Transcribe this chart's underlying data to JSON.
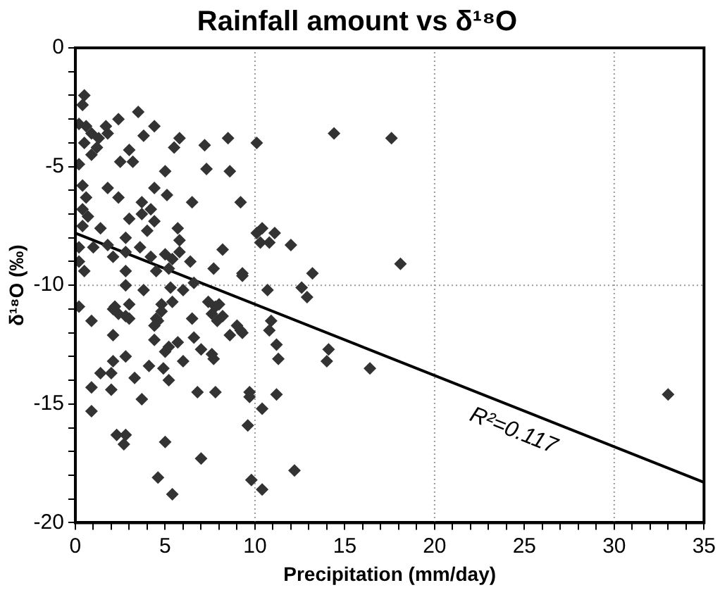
{
  "chart_data": {
    "type": "scatter",
    "title": "Rainfall amount vs δ¹⁸O",
    "xlabel": "Precipitation (mm/day)",
    "ylabel": "δ¹⁸O (‰)",
    "marker": "diamond",
    "xlim": [
      0,
      35
    ],
    "xticks": [
      0,
      {
        "value": 1,
        "label": null
      },
      {
        "value": 2,
        "label": null
      },
      {
        "value": 3,
        "label": null
      },
      {
        "value": 4,
        "label": null
      },
      5,
      {
        "value": 6,
        "label": null
      },
      {
        "value": 7,
        "label": null
      },
      {
        "value": 8,
        "label": null
      },
      {
        "value": 9,
        "label": null
      },
      10,
      {
        "value": 11,
        "label": null
      },
      {
        "value": 12,
        "label": null
      },
      {
        "value": 13,
        "label": null
      },
      {
        "value": 14,
        "label": null
      },
      15,
      {
        "value": 16,
        "label": null
      },
      {
        "value": 17,
        "label": null
      },
      {
        "value": 18,
        "label": null
      },
      {
        "value": 19,
        "label": null
      },
      20,
      {
        "value": 21,
        "label": null
      },
      {
        "value": 22,
        "label": null
      },
      {
        "value": 23,
        "label": null
      },
      {
        "value": 24,
        "label": null
      },
      25,
      {
        "value": 26,
        "label": null
      },
      {
        "value": 27,
        "label": null
      },
      {
        "value": 28,
        "label": null
      },
      {
        "value": 29,
        "label": null
      },
      30,
      {
        "value": 31,
        "label": null
      },
      {
        "value": 32,
        "label": null
      },
      {
        "value": 33,
        "label": null
      },
      {
        "value": 34,
        "label": null
      },
      35
    ],
    "ylim": [
      -20,
      0
    ],
    "yticks": [
      -20,
      {
        "value": -19,
        "label": null
      },
      {
        "value": -18,
        "label": null
      },
      {
        "value": -17,
        "label": null
      },
      {
        "value": -16,
        "label": null
      },
      -15,
      {
        "value": -14,
        "label": null
      },
      {
        "value": -13,
        "label": null
      },
      {
        "value": -12,
        "label": null
      },
      {
        "value": -11,
        "label": null
      },
      -10,
      {
        "value": -9,
        "label": null
      },
      {
        "value": -8,
        "label": null
      },
      {
        "value": -7,
        "label": null
      },
      {
        "value": -6,
        "label": null
      },
      -5,
      {
        "value": -4,
        "label": null
      },
      {
        "value": -3,
        "label": null
      },
      {
        "value": -2,
        "label": null
      },
      {
        "value": -1,
        "label": null
      },
      0
    ],
    "ref_lines": [
      {
        "axis": "x",
        "value": 10,
        "color": "#999999",
        "line_style": "dotted"
      },
      {
        "axis": "x",
        "value": 20,
        "color": "#999999",
        "line_style": "dotted"
      },
      {
        "axis": "x",
        "value": 30,
        "color": "#999999",
        "line_style": "dotted"
      },
      {
        "axis": "y",
        "value": -10,
        "color": "#999999",
        "line_style": "dotted"
      }
    ],
    "series": [
      {
        "type": "scatter",
        "color": "#333333",
        "x": [
          0.5,
          0.4,
          0.2,
          0.6,
          0.9,
          1.3,
          0.5,
          1.2,
          0.9,
          1.7,
          1.8,
          2.4,
          3.5,
          3.8,
          4.4,
          5.8,
          5.5,
          7.2,
          8.5,
          10.1,
          3.0,
          2.5,
          3.2,
          0.2,
          5.0,
          7.3,
          8.6,
          0.4,
          1.8,
          2.4,
          4.4,
          5.1,
          6.5,
          9.2,
          0.6,
          0.4,
          0.7,
          3.7,
          4.2,
          3.7,
          3.0,
          4.4,
          5.7,
          4.0,
          0.4,
          1.4,
          2.8,
          1.8,
          1.0,
          0.2,
          5.8,
          8.2,
          10.1,
          10.4,
          10.3,
          10.8,
          11.1,
          2.1,
          2.8,
          3.6,
          4.2,
          5.0,
          5.4,
          5.8,
          6.4,
          0.2,
          0.5,
          2.8,
          4.5,
          5.2,
          7.7,
          9.3,
          2.8,
          3.8,
          5.3,
          6.0,
          6.6,
          10.7,
          0.2,
          2.2,
          3.0,
          4.8,
          5.4,
          7.4,
          8.0,
          0.9,
          2.1,
          2.4,
          2.8,
          3.0,
          2.1,
          4.5,
          4.8,
          4.4,
          4.6,
          4.4,
          6.5,
          7.6,
          7.9,
          8.2,
          7.8,
          8.6,
          9.0,
          9.3,
          6.6,
          7.0,
          5.7,
          5.2,
          5.0,
          7.6,
          7.7,
          6.0,
          2.8,
          2.1,
          1.4,
          2.0,
          3.3,
          4.1,
          4.9,
          5.2,
          0.9,
          2.0,
          3.7,
          0.9,
          6.8,
          7.8,
          9.7,
          9.7,
          10.4,
          9.6,
          2.3,
          2.8,
          2.7,
          5.0,
          7.0,
          4.6,
          5.4,
          9.8,
          10.4,
          10.9,
          10.8,
          11.2,
          11.3,
          11.2,
          14.4,
          17.6,
          12.0,
          18.1,
          13.2,
          9.3,
          12.6,
          12.9,
          9.2,
          14.1,
          14.0,
          16.4,
          12.2,
          33.0
        ],
        "values": [
          -2.0,
          -2.4,
          -3.2,
          -3.3,
          -3.6,
          -3.8,
          -4.0,
          -4.2,
          -4.5,
          -3.3,
          -3.6,
          -3.0,
          -2.7,
          -3.7,
          -3.3,
          -3.8,
          -4.2,
          -4.1,
          -3.8,
          -4.0,
          -4.3,
          -4.8,
          -4.8,
          -4.9,
          -5.2,
          -5.1,
          -5.2,
          -5.8,
          -5.9,
          -6.3,
          -5.9,
          -6.2,
          -6.5,
          -6.5,
          -6.3,
          -6.8,
          -7.1,
          -6.5,
          -6.8,
          -7.0,
          -7.2,
          -7.3,
          -7.6,
          -7.7,
          -7.5,
          -7.6,
          -8.0,
          -8.3,
          -8.4,
          -8.4,
          -8.1,
          -8.5,
          -7.8,
          -7.6,
          -8.2,
          -8.2,
          -7.8,
          -8.8,
          -8.6,
          -8.4,
          -8.8,
          -8.7,
          -8.9,
          -8.6,
          -9.0,
          -9.0,
          -9.4,
          -9.4,
          -9.4,
          -9.3,
          -9.3,
          -9.5,
          -10.0,
          -10.2,
          -10.1,
          -10.2,
          -9.9,
          -10.2,
          -10.9,
          -10.9,
          -10.8,
          -10.8,
          -10.7,
          -10.7,
          -10.8,
          -11.5,
          -11.0,
          -11.2,
          -11.3,
          -11.4,
          -12.1,
          -11.4,
          -11.1,
          -11.7,
          -11.5,
          -12.3,
          -11.4,
          -11.2,
          -11.5,
          -11.3,
          -10.9,
          -12.1,
          -11.7,
          -12.0,
          -12.2,
          -12.7,
          -12.4,
          -12.6,
          -12.8,
          -12.9,
          -13.1,
          -13.2,
          -13.0,
          -13.2,
          -13.7,
          -13.7,
          -13.9,
          -13.4,
          -13.5,
          -14.0,
          -14.3,
          -14.4,
          -14.8,
          -15.3,
          -14.5,
          -14.5,
          -14.5,
          -14.7,
          -15.2,
          -15.9,
          -16.3,
          -16.3,
          -16.7,
          -16.6,
          -17.3,
          -18.1,
          -18.8,
          -18.2,
          -18.6,
          -11.5,
          -11.9,
          -12.5,
          -13.1,
          -14.6,
          -3.6,
          -3.8,
          -8.3,
          -9.1,
          -9.5,
          -9.6,
          -10.1,
          -10.5,
          -11.9,
          -12.7,
          -13.2,
          -13.5,
          -17.8,
          -14.6
        ]
      },
      {
        "type": "line",
        "color": "#000000",
        "marker": "none",
        "x": [
          0,
          35
        ],
        "values": [
          -7.8,
          -18.3
        ]
      }
    ],
    "annotations": [
      "R²=0.117"
    ]
  }
}
